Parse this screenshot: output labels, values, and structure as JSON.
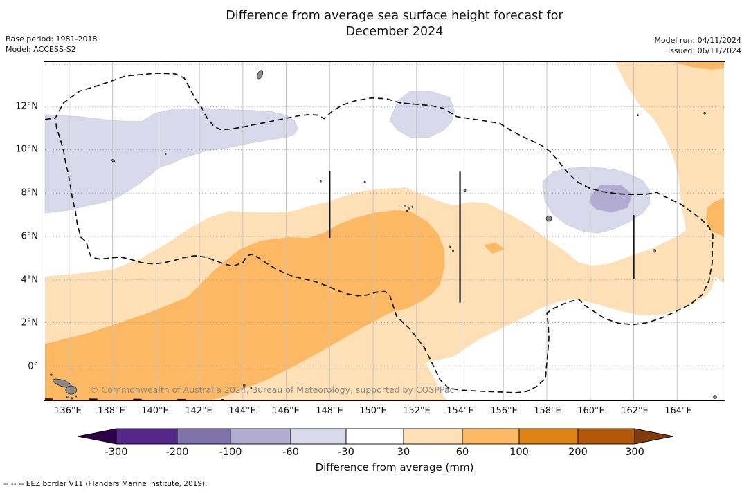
{
  "header": {
    "title_line1": "Difference from average sea surface height forecast for",
    "title_line2": "December 2024",
    "base_period": "Base period: 1981-2018",
    "model": "Model: ACCESS-S2",
    "model_run": "Model run: 04/11/2024",
    "issued": "Issued: 06/11/2024"
  },
  "map": {
    "x_tick_labels": [
      "136°E",
      "138°E",
      "140°E",
      "142°E",
      "144°E",
      "146°E",
      "148°E",
      "150°E",
      "152°E",
      "154°E",
      "156°E",
      "158°E",
      "160°E",
      "162°E",
      "164°E"
    ],
    "y_tick_labels": [
      "12°N",
      "10°N",
      "8°N",
      "6°N",
      "4°N",
      "2°N",
      "0°"
    ],
    "watermark": "© Commonwealth of Australia 2024, Bureau of Meteorology, supported by COSPPac"
  },
  "map_colors": {
    "neg_mild": "#d8daeb",
    "neg_moderate": "#b2abd2",
    "pos_mild": "#fee0b6",
    "pos_moderate": "#fdb863",
    "land": "#8a8a8a",
    "eez_line": "#111111",
    "grid_vertical": "#c4c4c4",
    "grid_horizontal": "#9a9a9a"
  },
  "colorbar": {
    "tick_labels": [
      "-300",
      "-200",
      "-100",
      "-60",
      "-30",
      "30",
      "60",
      "100",
      "200",
      "300"
    ],
    "segment_colors": [
      "#542788",
      "#8073ac",
      "#b2abd2",
      "#d8daeb",
      "#ffffff",
      "#fee0b6",
      "#fdb863",
      "#e08214",
      "#b35806"
    ],
    "under_arrow_color": "#2d004b",
    "over_arrow_color": "#7f3b08",
    "label": "Difference from average (mm)"
  },
  "footer": {
    "eez_note": "--  --  -- EEZ border V11 (Flanders Marine Institute, 2019)."
  },
  "chart_data": {
    "type": "heatmap",
    "subtype": "filled-contour geographic map",
    "title": "Difference from average sea surface height forecast for December 2024",
    "variable": "Sea surface height difference from average (mm)",
    "base_period": "1981-2018",
    "model": "ACCESS-S2",
    "model_run": "04/11/2024",
    "issued": "06/11/2024",
    "lon_range_deg_e": [
      135,
      166
    ],
    "lat_range_deg_n": [
      -1.5,
      14
    ],
    "contour_levels_mm": [
      -300,
      -200,
      -100,
      -60,
      -30,
      30,
      60,
      100,
      200,
      300
    ],
    "legend_label": "Difference from average (mm)",
    "regions": [
      {
        "value_band_mm": "-60 to -30",
        "area": "zonal band 135E-145E between about 7N and 11.5N (northwest)"
      },
      {
        "value_band_mm": "-60 to -30",
        "area": "small hexagonal patch near 152E, 11-12N"
      },
      {
        "value_band_mm": "-60 to -30",
        "area": "oval patch near 160E, 6.5-8.5N"
      },
      {
        "value_band_mm": "-100 to -60",
        "area": "core near 160E, 7-7.5N inside the eastern negative patch"
      },
      {
        "value_band_mm": "30 to 60",
        "area": "broad band covering the south and southwest (below ~4N in west, up to ~8N near 150E) and along the eastern edge up to the top-right corner"
      },
      {
        "value_band_mm": "60 to 100",
        "area": "diagonal band from 135E,0N to about 153E,7N; bottom-left corner; top-right corner near 163E,13.5N; small patch at 165E,6-7N; tiny patch near 155E,5.5N"
      },
      {
        "value_band_mm": "-30 to 30",
        "area": "remaining areas (white), including centre-north and southeast"
      }
    ],
    "overlays": [
      "EEZ border V11 shown as black dashed outline (Federated States of Micronesia region)",
      "solid black meridional divider segments near 148E (6-9N), 154E (3-9N), 162E (4-7N)",
      "small grey land features: Palau chain (SW), Guam (N), Yap, Chuuk, Pohnpei, Kosrae"
    ]
  }
}
